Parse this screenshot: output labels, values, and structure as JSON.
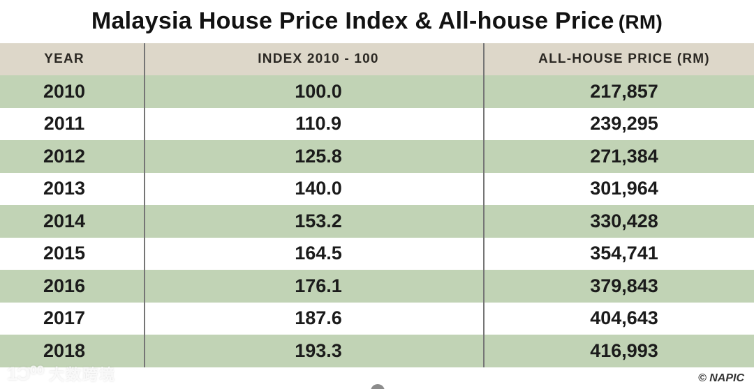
{
  "title": {
    "main": "Malaysia House Price Index & All-house Price",
    "suffix": "(RM)"
  },
  "table": {
    "columns": [
      "YEAR",
      "INDEX 2010 - 100",
      "ALL-HOUSE PRICE (RM)"
    ],
    "rows": [
      {
        "year": "2010",
        "index": "100.0",
        "price": "217,857"
      },
      {
        "year": "2011",
        "index": "110.9",
        "price": "239,295"
      },
      {
        "year": "2012",
        "index": "125.8",
        "price": "271,384"
      },
      {
        "year": "2013",
        "index": "140.0",
        "price": "301,964"
      },
      {
        "year": "2014",
        "index": "153.2",
        "price": "330,428"
      },
      {
        "year": "2015",
        "index": "164.5",
        "price": "354,741"
      },
      {
        "year": "2016",
        "index": "176.1",
        "price": "379,843"
      },
      {
        "year": "2017",
        "index": "187.6",
        "price": "404,643"
      },
      {
        "year": "2018",
        "index": "193.3",
        "price": "416,993"
      }
    ],
    "colors": {
      "header_bg": "#ddd7c9",
      "row_green": "#c1d3b5",
      "row_white": "#ffffff",
      "divider": "#757575"
    }
  },
  "footer": {
    "watermark_logo": "1Ɔ⁰⁰",
    "watermark_text": "大数跨境",
    "credit": "© NAPIC"
  },
  "chart_data": {
    "type": "table",
    "title": "Malaysia House Price Index & All-house Price (RM)",
    "columns": [
      "YEAR",
      "INDEX 2010 - 100",
      "ALL-HOUSE PRICE (RM)"
    ],
    "rows": [
      [
        "2010",
        100.0,
        217857
      ],
      [
        "2011",
        110.9,
        239295
      ],
      [
        "2012",
        125.8,
        271384
      ],
      [
        "2013",
        140.0,
        301964
      ],
      [
        "2014",
        153.2,
        330428
      ],
      [
        "2015",
        164.5,
        354741
      ],
      [
        "2016",
        176.1,
        379843
      ],
      [
        "2017",
        187.6,
        404643
      ],
      [
        "2018",
        193.3,
        416993
      ]
    ],
    "source": "© NAPIC",
    "layout": {
      "zebra_striping": true,
      "index_base_year": 2010
    }
  }
}
